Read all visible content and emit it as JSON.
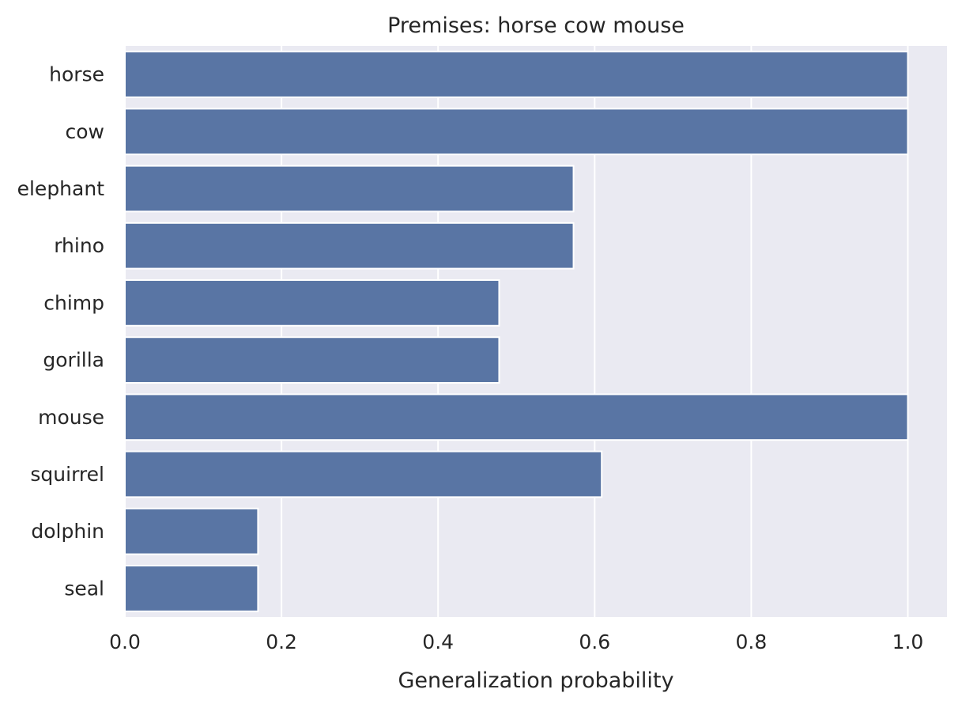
{
  "chart_data": {
    "type": "bar",
    "orientation": "horizontal",
    "title": "Premises: horse cow mouse",
    "xlabel": "Generalization probability",
    "ylabel": "",
    "categories": [
      "horse",
      "cow",
      "elephant",
      "rhino",
      "chimp",
      "gorilla",
      "mouse",
      "squirrel",
      "dolphin",
      "seal"
    ],
    "values": [
      1.0,
      1.0,
      0.573,
      0.573,
      0.478,
      0.478,
      1.0,
      0.609,
      0.17,
      0.17
    ],
    "xlim": [
      0,
      1.05
    ],
    "xticks": [
      0.0,
      0.2,
      0.4,
      0.6,
      0.8,
      1.0
    ],
    "xtick_labels": [
      "0.0",
      "0.2",
      "0.4",
      "0.6",
      "0.8",
      "1.0"
    ],
    "grid": true,
    "colors": {
      "bar": "#5975a4",
      "plot_background": "#eaeaf2",
      "grid": "#ffffff"
    }
  }
}
